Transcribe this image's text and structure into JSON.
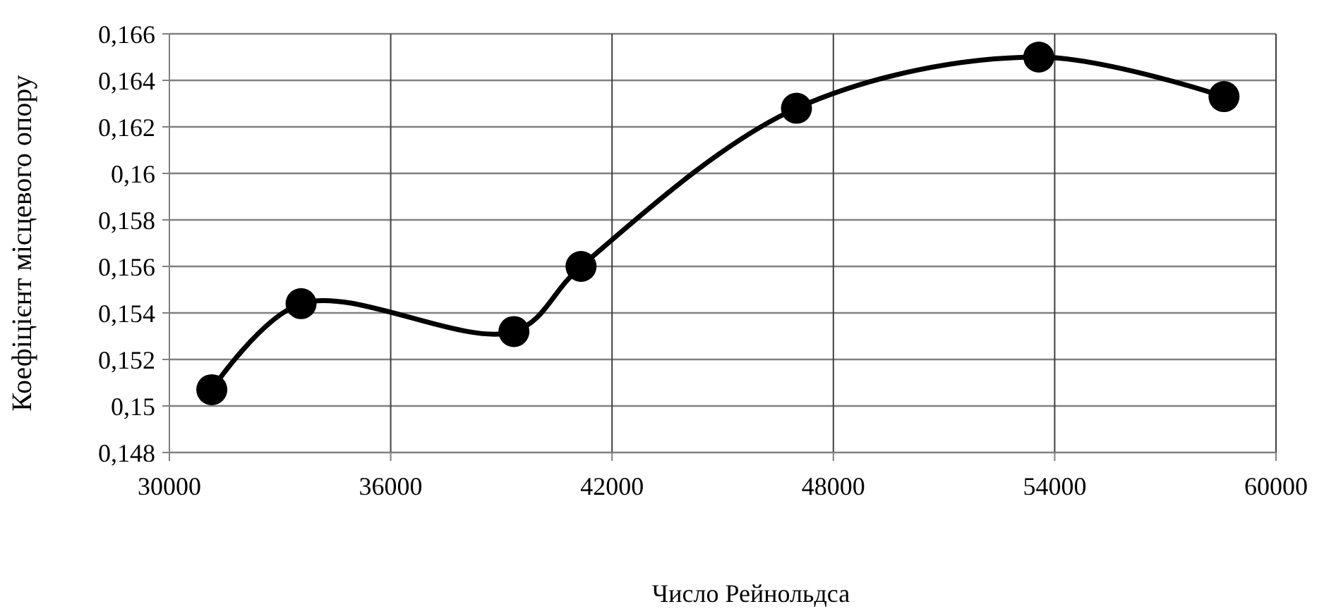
{
  "chart_data": {
    "type": "line",
    "xlabel": "Число Рейнольдса",
    "ylabel": "Коефіцієнт місцевого опору",
    "x": [
      31150,
      33570,
      39340,
      41160,
      47000,
      53570,
      58590
    ],
    "series": [
      {
        "color": "#000000",
        "values": [
          0.1507,
          0.1544,
          0.1532,
          0.156,
          0.1628,
          0.165,
          0.1633
        ]
      }
    ],
    "xlim": [
      30000,
      60000
    ],
    "xticks": [
      30000,
      36000,
      42000,
      48000,
      54000,
      60000
    ],
    "ylim": [
      0.148,
      0.166
    ],
    "yticks": [
      {
        "value": 0.148,
        "label": "0,148"
      },
      {
        "value": 0.15,
        "label": "0,15"
      },
      {
        "value": 0.152,
        "label": "0,152"
      },
      {
        "value": 0.154,
        "label": "0,154"
      },
      {
        "value": 0.156,
        "label": "0,156"
      },
      {
        "value": 0.158,
        "label": "0,158"
      },
      {
        "value": 0.16,
        "label": "0,16"
      },
      {
        "value": 0.162,
        "label": "0,162"
      },
      {
        "value": 0.164,
        "label": "0,164"
      },
      {
        "value": 0.166,
        "label": "0,166"
      }
    ],
    "grid": true,
    "marker": "circle",
    "line_style": "solid"
  }
}
